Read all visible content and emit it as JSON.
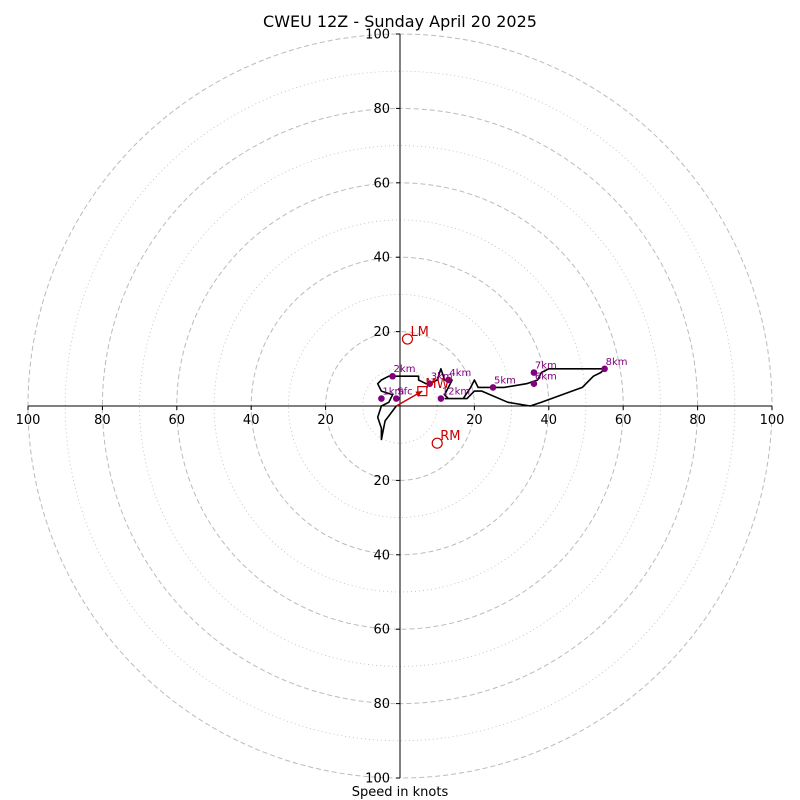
{
  "chart_data": {
    "type": "hodograph",
    "title": "CWEU 12Z - Sunday April 20 2025",
    "xlabel": "Speed in knots",
    "range": 100,
    "tick_labels": [
      "20",
      "40",
      "60",
      "80",
      "100"
    ],
    "ring_major": [
      20,
      40,
      60,
      80,
      100
    ],
    "ring_minor": [
      10,
      30,
      50,
      70,
      90
    ],
    "colors": {
      "trace": "#000000",
      "height_marker": "#800080",
      "motion": "#cc0000",
      "ring": "#bbbbbb"
    },
    "trace": [
      [
        -1,
        0
      ],
      [
        -4,
        -4
      ],
      [
        -5,
        -9
      ],
      [
        -5,
        -6
      ],
      [
        -6,
        -3
      ],
      [
        -5,
        0
      ],
      [
        -3,
        1
      ],
      [
        -2,
        3
      ],
      [
        -5,
        4
      ],
      [
        -6,
        6
      ],
      [
        -5,
        7
      ],
      [
        -3,
        8
      ],
      [
        -2,
        8
      ],
      [
        1,
        8
      ],
      [
        3,
        8
      ],
      [
        5,
        8
      ],
      [
        5,
        7
      ],
      [
        7,
        6
      ],
      [
        8,
        6
      ],
      [
        10,
        7
      ],
      [
        11,
        10
      ],
      [
        12,
        7
      ],
      [
        14,
        7
      ],
      [
        13,
        5
      ],
      [
        12,
        3
      ],
      [
        13,
        2
      ],
      [
        17,
        2
      ],
      [
        19,
        5
      ],
      [
        20,
        7
      ],
      [
        21,
        5
      ],
      [
        23,
        5
      ],
      [
        28,
        5
      ],
      [
        34,
        6
      ],
      [
        37,
        7
      ],
      [
        38,
        9
      ],
      [
        40,
        10
      ],
      [
        50,
        10
      ],
      [
        55,
        10
      ],
      [
        54,
        9
      ],
      [
        52,
        8
      ],
      [
        49,
        5
      ],
      [
        38,
        1
      ],
      [
        35,
        0
      ],
      [
        29,
        1
      ],
      [
        22,
        4
      ],
      [
        20,
        4
      ],
      [
        18,
        2
      ],
      [
        17,
        2
      ],
      [
        12,
        2
      ]
    ],
    "height_points": [
      {
        "label": "Sfc",
        "u": -1,
        "v": 2
      },
      {
        "label": "1km",
        "u": -5,
        "v": 2
      },
      {
        "label": "2km",
        "u": -2,
        "v": 8
      },
      {
        "label": "3km",
        "u": 8,
        "v": 6
      },
      {
        "label": "4km",
        "u": 13,
        "v": 7
      },
      {
        "label": "5km",
        "u": 25,
        "v": 5
      },
      {
        "label": "6km",
        "u": 36,
        "v": 6
      },
      {
        "label": "7km",
        "u": 36,
        "v": 9
      },
      {
        "label": "8km",
        "u": 55,
        "v": 10
      },
      {
        "label": "12km",
        "u": 11,
        "v": 2
      }
    ],
    "storm_motion": [
      {
        "label": "LM",
        "marker": "circle",
        "u": 2,
        "v": 18
      },
      {
        "label": "RM",
        "marker": "circle",
        "u": 10,
        "v": -10
      },
      {
        "label": "MW",
        "marker": "square",
        "u": 6,
        "v": 4
      }
    ],
    "shear_arrow": {
      "from": [
        -1,
        0
      ],
      "to": [
        6,
        4
      ]
    }
  }
}
